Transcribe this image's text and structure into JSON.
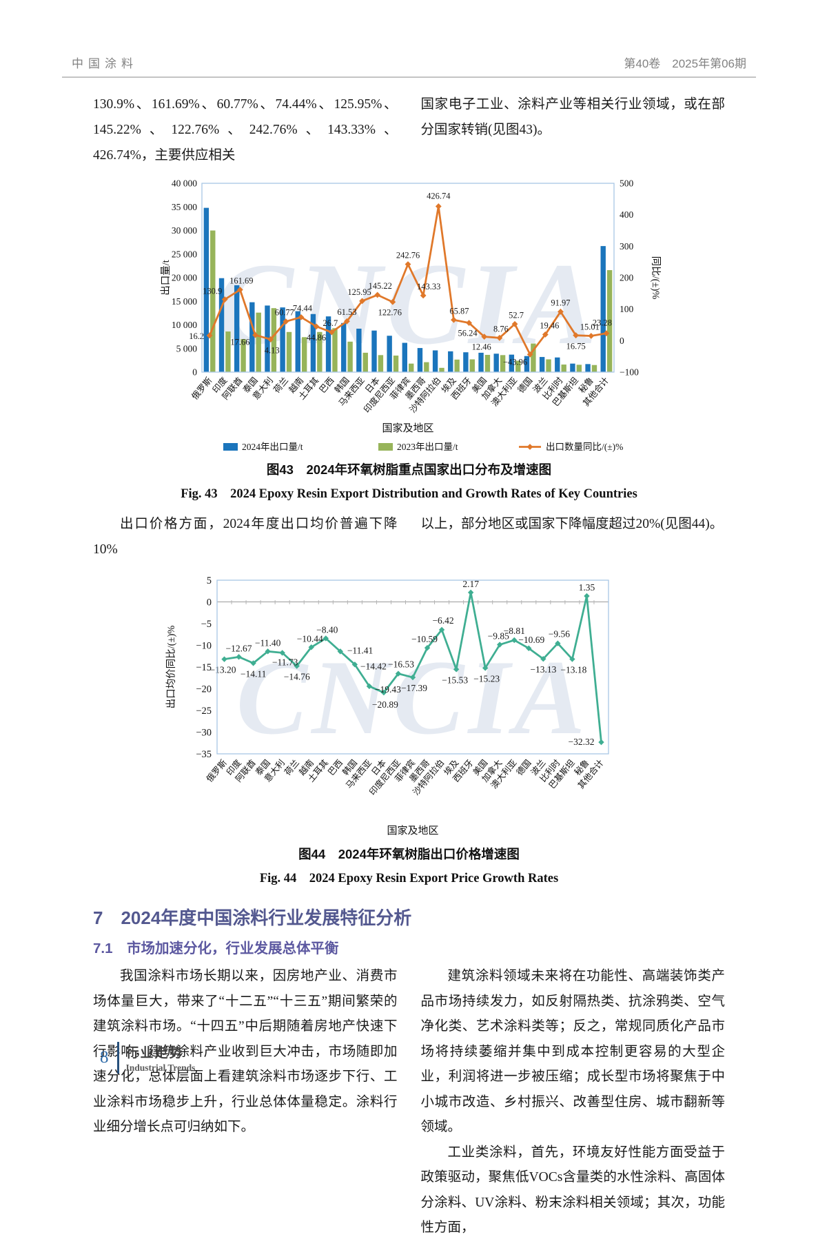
{
  "header": {
    "journal": "中国涂料",
    "issue": "第40卷　2025年第06期"
  },
  "intro": {
    "left": "130.9%、161.69%、60.77%、74.44%、125.95%、145.22%、122.76%、242.76%、143.33%、426.74%，主要供应相关",
    "right": "国家电子工业、涂料产业等相关行业领域，或在部分国家转销(见图43)。"
  },
  "mid": {
    "left": "出口价格方面，2024年度出口均价普遍下降10%",
    "right": "以上，部分地区或国家下降幅度超过20%(见图44)。"
  },
  "chart_data": [
    {
      "type": "bar",
      "title_cn": "图43　2024年环氧树脂重点国家出口分布及增速图",
      "title_en": "Fig. 43　2024 Epoxy Resin Export Distribution and Growth Rates of Key Countries",
      "categories": [
        "俄罗斯",
        "印度",
        "阿联酋",
        "泰国",
        "意大利",
        "荷兰",
        "越南",
        "土耳其",
        "巴西",
        "韩国",
        "马来西亚",
        "日本",
        "印度尼西亚",
        "菲律宾",
        "墨西哥",
        "沙特阿拉伯",
        "埃及",
        "西班牙",
        "美国",
        "加拿大",
        "澳大利亚",
        "德国",
        "波兰",
        "比利时",
        "巴基斯坦",
        "秘鲁",
        "其他合计"
      ],
      "xlabel": "国家及地区",
      "ylabel_left": "出口量/t",
      "ylabel_right": "同比/(±)%",
      "ylim_left": [
        0,
        40000
      ],
      "ytick_left": 5000,
      "ylim_right": [
        -100,
        500
      ],
      "ytick_right": 100,
      "watermark": "CNCIA",
      "legend_position": "bottom",
      "grid": false,
      "series": [
        {
          "name": "2024年出口量/t",
          "kind": "bar",
          "color": "#1b75bc",
          "values": [
            34800,
            19900,
            18400,
            14800,
            14100,
            13700,
            12900,
            12300,
            11800,
            10400,
            9200,
            8800,
            7700,
            6200,
            5100,
            4600,
            4400,
            4200,
            4100,
            3900,
            3700,
            3400,
            3200,
            3100,
            1800,
            1700,
            26700
          ]
        },
        {
          "name": "2023年出口量/t",
          "kind": "bar",
          "color": "#97b45a",
          "values": [
            30000,
            8600,
            7000,
            12600,
            13550,
            8500,
            7400,
            8500,
            9300,
            6450,
            4100,
            3600,
            3500,
            1800,
            2100,
            900,
            2650,
            2700,
            3650,
            3600,
            2400,
            6050,
            2700,
            1600,
            1550,
            1500,
            21600
          ]
        },
        {
          "name": "出口数量同比/(±)%",
          "kind": "line",
          "color": "#e0782a",
          "axis": "right",
          "values": [
            16.2,
            130.9,
            161.69,
            17.66,
            4.13,
            60.77,
            74.44,
            44.86,
            26.7,
            61.53,
            125.95,
            145.22,
            122.76,
            242.76,
            143.33,
            426.74,
            65.87,
            56.24,
            12.46,
            8.76,
            52.7,
            -43.96,
            19.46,
            91.97,
            16.75,
            15.01,
            23.28
          ],
          "labels": [
            "16.2",
            "130.9",
            "161.69",
            "17.66",
            "4.13",
            "60.77",
            "74.44",
            "44.86",
            "26.7",
            "61.53",
            "125.95",
            "145.22",
            "122.76",
            "242.76",
            "143.33",
            "426.74",
            "65.87",
            "56.24",
            "12.46",
            "8.76",
            "52.7",
            "−43.96",
            "19.46",
            "91.97",
            "16.75",
            "15.01",
            "23.28"
          ]
        }
      ]
    },
    {
      "type": "line",
      "title_cn": "图44　2024年环氧树脂出口价格增速图",
      "title_en": "Fig. 44　2024 Epoxy Resin Export Price Growth Rates",
      "categories": [
        "俄罗斯",
        "印度",
        "阿联酋",
        "泰国",
        "意大利",
        "荷兰",
        "越南",
        "土耳其",
        "巴西",
        "韩国",
        "马来西亚",
        "日本",
        "印度尼西亚",
        "菲律宾",
        "墨西哥",
        "沙特阿拉伯",
        "埃及",
        "西班牙",
        "美国",
        "加拿大",
        "澳大利亚",
        "德国",
        "波兰",
        "比利时",
        "巴基斯坦",
        "秘鲁",
        "其他合计"
      ],
      "xlabel": "国家及地区",
      "ylabel": "出口均价同比/(±)%",
      "ylim": [
        -35,
        5
      ],
      "ytick": 5,
      "color": "#3fae92",
      "watermark": "CNCIA",
      "grid": false,
      "values": [
        -13.2,
        -12.67,
        -14.11,
        -11.4,
        -11.73,
        -14.76,
        -10.44,
        -8.4,
        -11.41,
        -14.42,
        -19.43,
        -20.89,
        -16.53,
        -17.39,
        -10.59,
        -6.42,
        -15.53,
        2.17,
        -15.23,
        -9.85,
        -8.81,
        -10.69,
        -13.13,
        -9.56,
        -13.18,
        1.35,
        -32.32
      ],
      "labels": [
        "−13.20",
        "−12.67",
        "−14.11",
        "−11.40",
        "−11.73",
        "−14.76",
        "−10.44",
        "−8.40",
        "−11.41",
        "−14.42",
        "−19.43",
        "−20.89",
        "−16.53",
        "−17.39",
        "−10.59",
        "−6.42",
        "−15.53",
        "2.17",
        "−15.23",
        "−9.85",
        "−8.81",
        "−10.69",
        "−13.13",
        "−9.56",
        "−13.18",
        "1.35",
        "−32.32"
      ]
    }
  ],
  "figures": {
    "fig43": {
      "caption_cn": "图43　2024年环氧树脂重点国家出口分布及增速图",
      "caption_en": "Fig. 43　2024 Epoxy Resin Export Distribution and Growth Rates of Key Countries"
    },
    "fig44": {
      "caption_cn": "图44　2024年环氧树脂出口价格增速图",
      "caption_en": "Fig. 44　2024 Epoxy Resin Export Price Growth Rates"
    }
  },
  "section": {
    "heading": "7　2024年度中国涂料行业发展特征分析",
    "subheading": "7.1　市场加速分化，行业发展总体平衡",
    "para_left": "我国涂料市场长期以来，因房地产业、消费市场体量巨大，带来了“十二五”“十三五”期间繁荣的建筑涂料市场。“十四五”中后期随着房地产快速下行影响，建筑涂料产业收到巨大冲击，市场随即加速分化，总体层面上看建筑涂料市场逐步下行、工业涂料市场稳步上升，行业总体体量稳定。涂料行业细分增长点可归纳如下。",
    "para_right1": "建筑涂料领域未来将在功能性、高端装饰类产品市场持续发力，如反射隔热类、抗涂鸦类、空气净化类、艺术涂料类等；反之，常规同质化产品市场将持续萎缩并集中到成本控制更容易的大型企业，利润将进一步被压缩；成长型市场将聚焦于中小城市改造、乡村振兴、改善型住房、城市翻新等领域。",
    "para_right2": "工业类涂料，首先，环境友好性能方面受益于政策驱动，聚焦低VOCs含量类的水性涂料、高固体分涂料、UV涂料、粉末涂料相关领域；其次，功能性方面，"
  },
  "footer": {
    "page": "8",
    "cn": "行业走势",
    "en": "Industrial Trends"
  },
  "colors": {
    "bar_2024": "#1b75bc",
    "bar_2023": "#97b45a",
    "line_growth": "#e0782a",
    "line_price": "#3fae92",
    "watermark": "#ccd7e6",
    "frame": "#a8c6e5",
    "heading": "#53588f",
    "subheading": "#5c58a0",
    "page_number": "#2f6ba8"
  }
}
